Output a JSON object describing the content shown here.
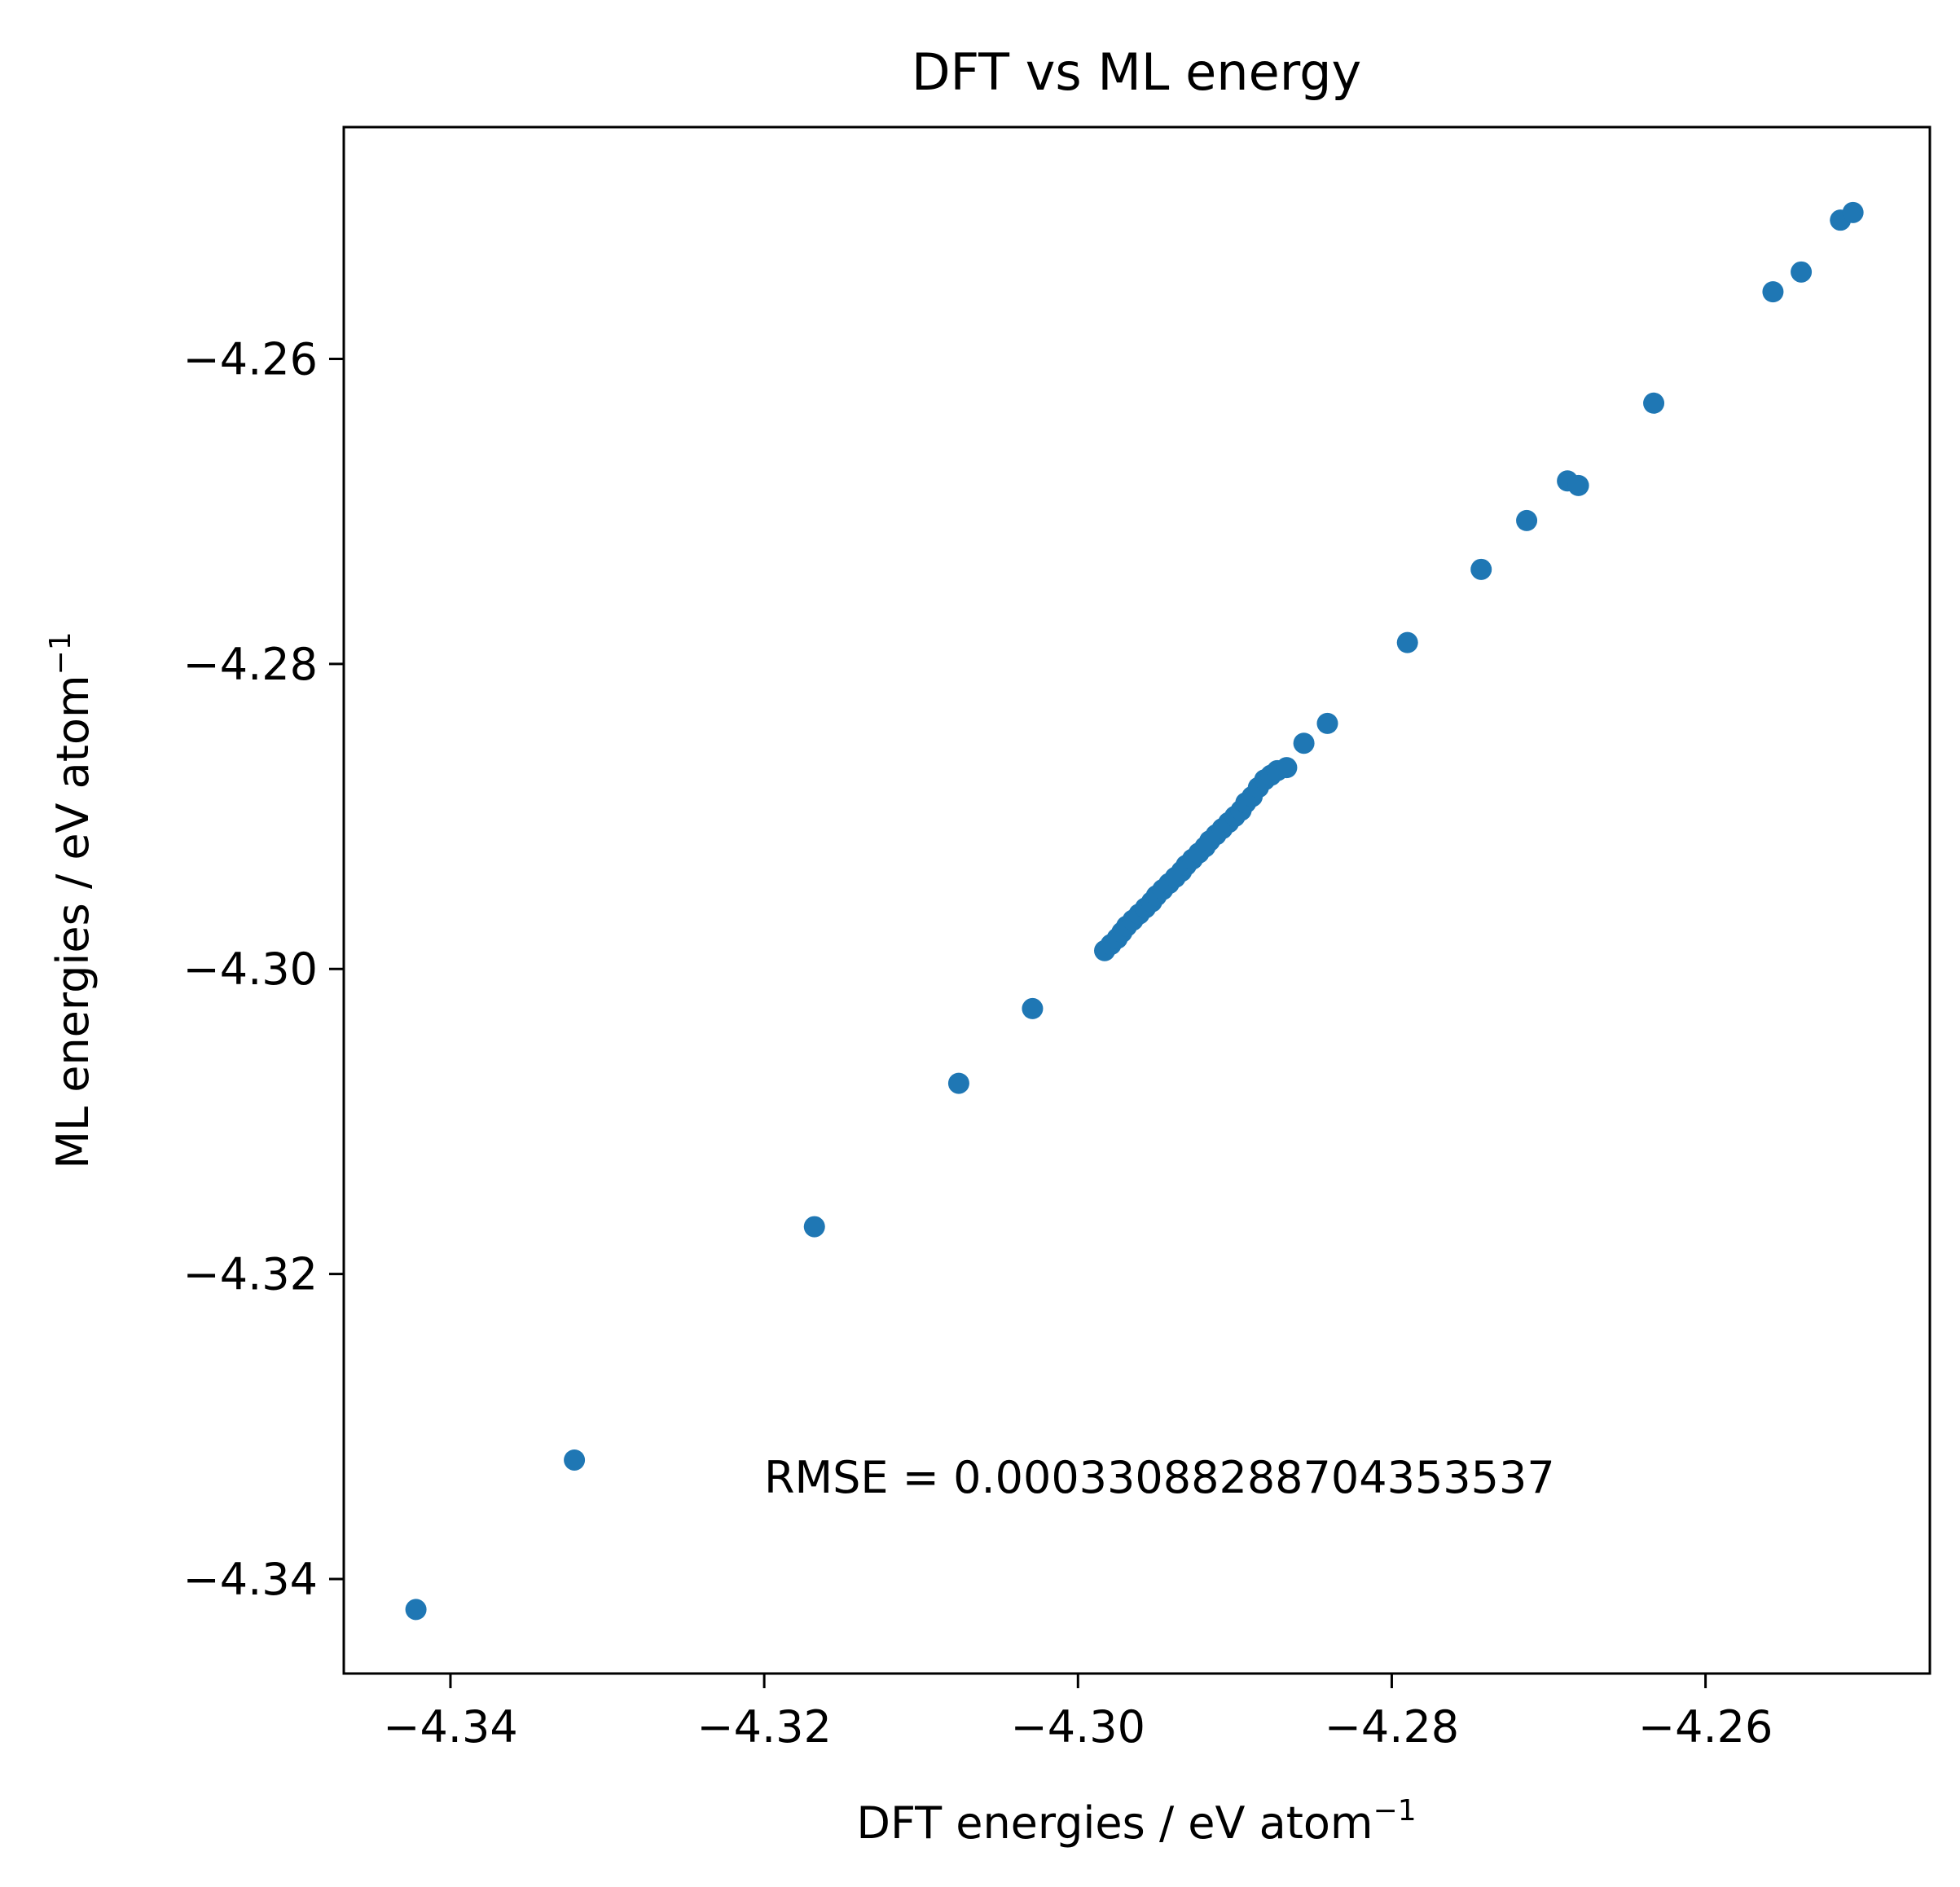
{
  "chart_data": {
    "type": "scatter",
    "title": "DFT vs ML energy",
    "xlabel": "DFT energies / eV atom",
    "ylabel": "ML energies / eV atom",
    "unit_exponent": "−1",
    "xlim": [
      -4.3468,
      -4.2457
    ],
    "ylim": [
      -4.3462,
      -4.2448
    ],
    "xticks": [
      -4.34,
      -4.32,
      -4.3,
      -4.28,
      -4.26
    ],
    "yticks": [
      -4.34,
      -4.32,
      -4.3,
      -4.28,
      -4.26
    ],
    "xtick_labels": [
      "−4.34",
      "−4.32",
      "−4.30",
      "−4.28",
      "−4.26"
    ],
    "ytick_labels": [
      "−4.34",
      "−4.32",
      "−4.30",
      "−4.28",
      "−4.26"
    ],
    "grid": false,
    "annotation": "RMSE = 0.00033088288704353537",
    "marker_color": "#1f77b4",
    "series": [
      {
        "x": [
          -4.3422,
          -4.3321,
          -4.3168,
          -4.3076,
          -4.3029,
          -4.2983,
          -4.2979,
          -4.2975,
          -4.2972,
          -4.2969,
          -4.2965,
          -4.2961,
          -4.2957,
          -4.2953,
          -4.295,
          -4.2946,
          -4.2942,
          -4.2938,
          -4.2934,
          -4.2931,
          -4.2927,
          -4.2923,
          -4.2919,
          -4.2916,
          -4.2912,
          -4.2908,
          -4.2904,
          -4.29,
          -4.2896,
          -4.2893,
          -4.2889,
          -4.2885,
          -4.2881,
          -4.2877,
          -4.2873,
          -4.2867,
          -4.2856,
          -4.2841,
          -4.279,
          -4.2743,
          -4.2714,
          -4.2688,
          -4.2681,
          -4.2633,
          -4.2557,
          -4.2539,
          -4.2514,
          -4.2506
        ],
        "y": [
          -4.342,
          -4.3322,
          -4.3169,
          -4.3075,
          -4.3026,
          -4.2988,
          -4.2984,
          -4.298,
          -4.2976,
          -4.2972,
          -4.2968,
          -4.2964,
          -4.296,
          -4.2956,
          -4.2952,
          -4.2948,
          -4.2944,
          -4.294,
          -4.2936,
          -4.2932,
          -4.2928,
          -4.2924,
          -4.292,
          -4.2916,
          -4.2912,
          -4.2908,
          -4.2904,
          -4.29,
          -4.2896,
          -4.2891,
          -4.2887,
          -4.2881,
          -4.2876,
          -4.2873,
          -4.287,
          -4.2868,
          -4.2852,
          -4.2839,
          -4.2786,
          -4.2738,
          -4.2706,
          -4.268,
          -4.2683,
          -4.2629,
          -4.2556,
          -4.2543,
          -4.2509,
          -4.2504
        ]
      }
    ]
  }
}
